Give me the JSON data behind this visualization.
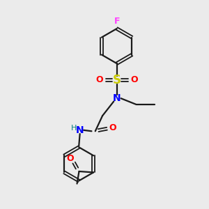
{
  "bg_color": "#ebebeb",
  "bond_color": "#1a1a1a",
  "F_color": "#ff44ff",
  "S_color": "#cccc00",
  "O_color": "#ff0000",
  "N_color": "#0000ff",
  "H_color": "#008080",
  "figsize": [
    3.0,
    3.0
  ],
  "dpi": 100,
  "xlim": [
    0,
    10
  ],
  "ylim": [
    0,
    10
  ]
}
